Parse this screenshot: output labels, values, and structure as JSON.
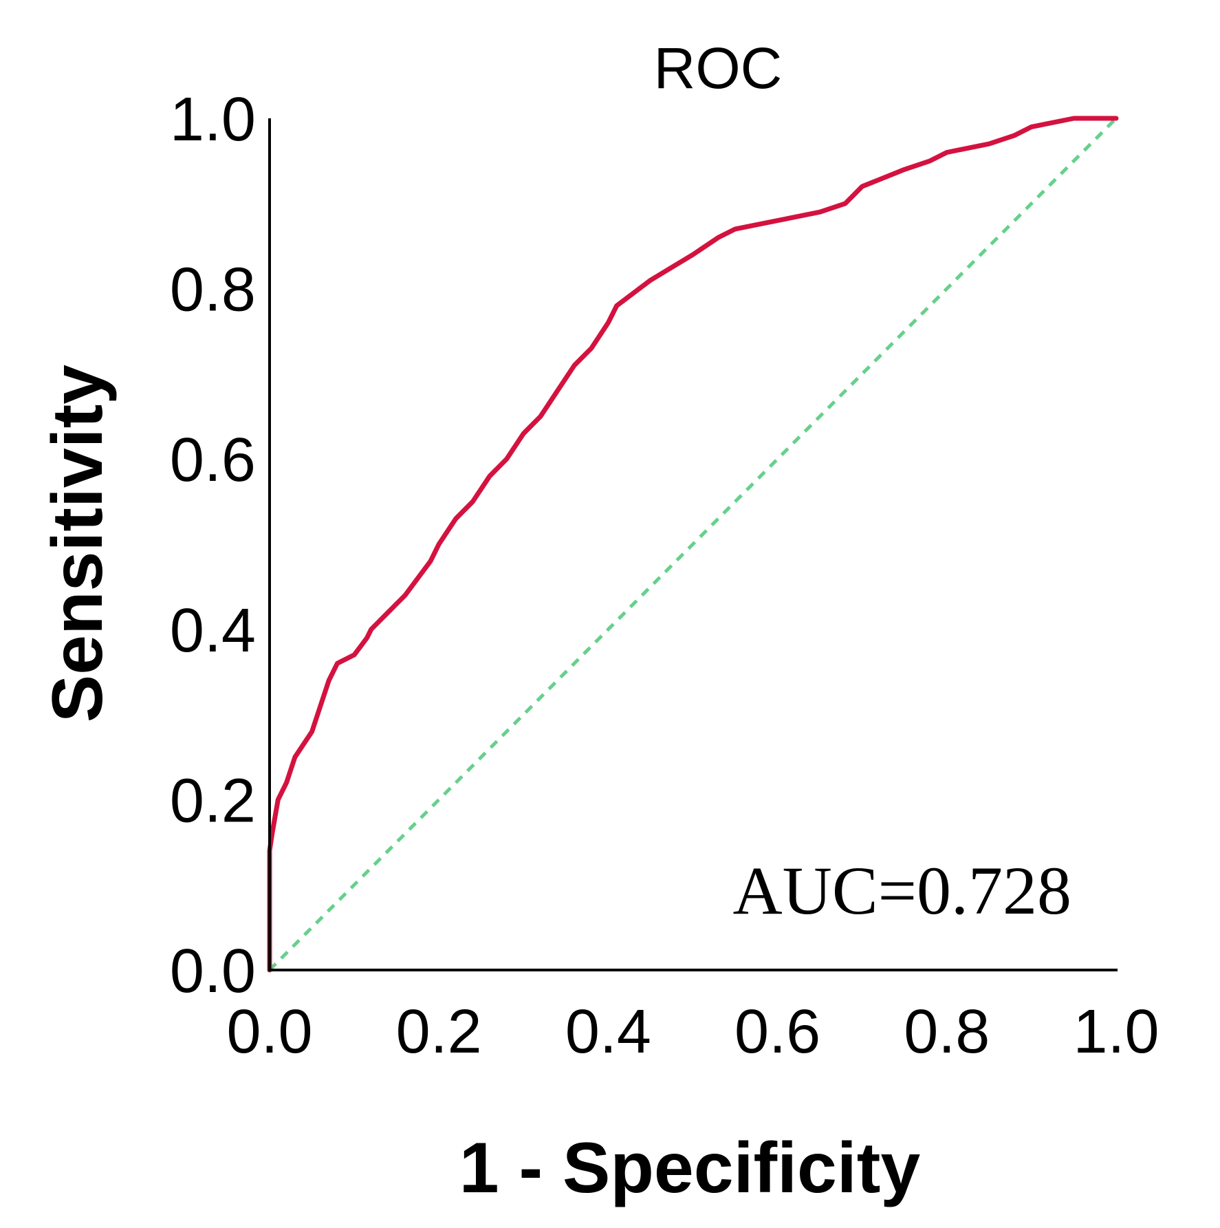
{
  "chart_data": {
    "type": "line",
    "title": "ROC",
    "xlabel": "1 - Specificity",
    "ylabel": "Sensitivity",
    "xlim": [
      0,
      1
    ],
    "ylim": [
      0,
      1
    ],
    "x_ticks": [
      "0.0",
      "0.2",
      "0.4",
      "0.6",
      "0.8",
      "1.0"
    ],
    "y_ticks": [
      "0.0",
      "0.2",
      "0.4",
      "0.6",
      "0.8",
      "1.0"
    ],
    "annotation": "AUC=0.728",
    "grid": false,
    "series": [
      {
        "name": "ROC curve",
        "color": "#d4123f",
        "x": [
          0,
          0,
          0.003,
          0.01,
          0.02,
          0.03,
          0.05,
          0.06,
          0.07,
          0.08,
          0.1,
          0.115,
          0.12,
          0.15,
          0.16,
          0.19,
          0.2,
          0.22,
          0.24,
          0.26,
          0.28,
          0.3,
          0.32,
          0.34,
          0.36,
          0.38,
          0.4,
          0.41,
          0.45,
          0.5,
          0.53,
          0.55,
          0.6,
          0.65,
          0.68,
          0.7,
          0.75,
          0.78,
          0.8,
          0.85,
          0.88,
          0.9,
          0.95,
          1.0
        ],
        "y": [
          0,
          0.14,
          0.16,
          0.2,
          0.22,
          0.25,
          0.28,
          0.31,
          0.34,
          0.36,
          0.37,
          0.39,
          0.4,
          0.43,
          0.44,
          0.48,
          0.5,
          0.53,
          0.55,
          0.58,
          0.6,
          0.63,
          0.65,
          0.68,
          0.71,
          0.73,
          0.76,
          0.78,
          0.81,
          0.84,
          0.86,
          0.87,
          0.88,
          0.89,
          0.9,
          0.92,
          0.94,
          0.95,
          0.96,
          0.97,
          0.98,
          0.99,
          1.0,
          1.0
        ]
      },
      {
        "name": "Reference line",
        "color": "#66d08c",
        "dashed": true,
        "x": [
          0,
          1
        ],
        "y": [
          0,
          1
        ]
      }
    ]
  }
}
